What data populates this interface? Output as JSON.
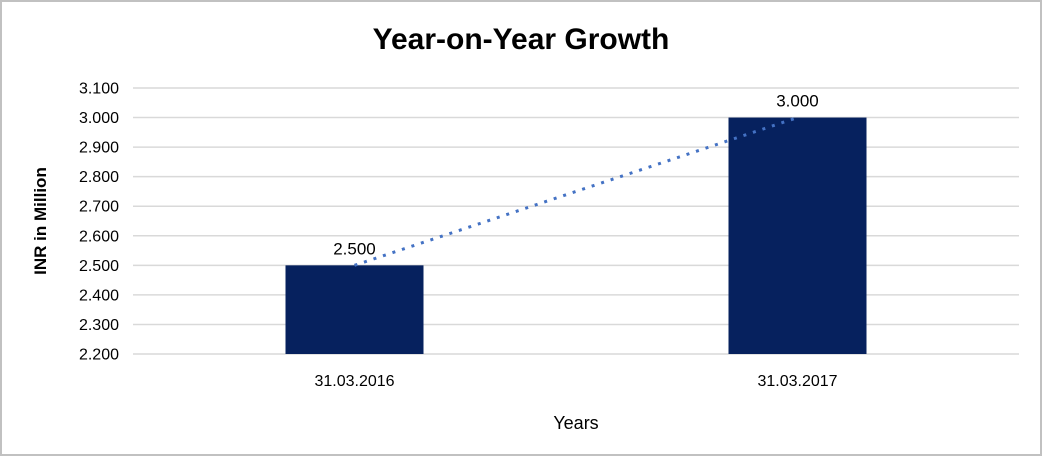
{
  "window": {
    "background_color": "#FFFFFF",
    "border_color": "#C1C1C1"
  },
  "chart_data": {
    "type": "bar",
    "title": "Year-on-Year Growth",
    "xlabel": "Years",
    "ylabel": "INR in Million",
    "categories": [
      "31.03.2016",
      "31.03.2017"
    ],
    "values": [
      2500,
      3000
    ],
    "bar_value_labels": [
      "2.500",
      "3.000"
    ],
    "ylim": [
      2200,
      3100
    ],
    "ytick_interval": 100,
    "ytick_labels": [
      "2.200",
      "2.300",
      "2.400",
      "2.500",
      "2.600",
      "2.700",
      "2.800",
      "2.900",
      "3.000",
      "3.100"
    ],
    "grid": "horizontal",
    "legend_position": "none",
    "bar_color": "#06215E",
    "grid_color": "#D9D9D9",
    "trendline": {
      "style": "dotted",
      "color": "#4472C4",
      "from_value": 2500,
      "to_value": 3000
    }
  }
}
